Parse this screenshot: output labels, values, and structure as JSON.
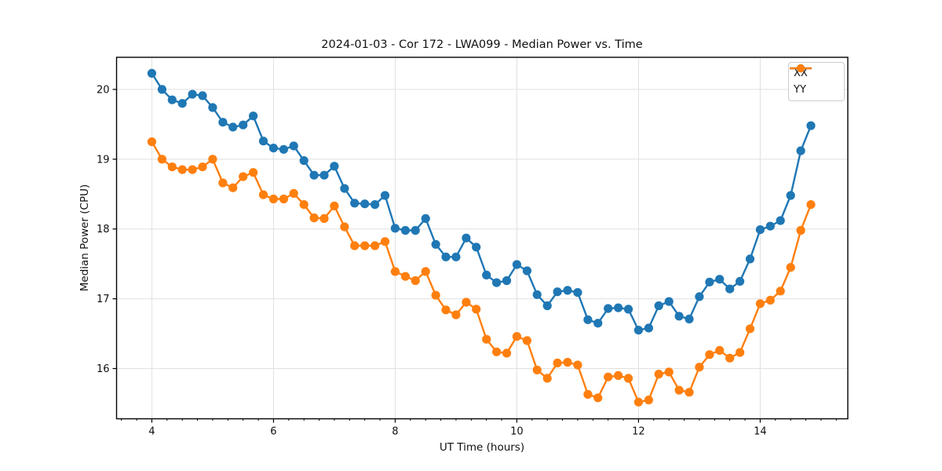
{
  "chart_data": {
    "type": "line",
    "title": "2024-01-03 - Cor 172 - LWA099 - Median Power vs. Time",
    "xlabel": "UT Time (hours)",
    "ylabel": "Median Power (CPU)",
    "xlim": [
      3.42,
      15.44
    ],
    "ylim": [
      15.28,
      20.46
    ],
    "x_major_ticks": [
      4,
      6,
      8,
      10,
      12,
      14
    ],
    "x_minor_tick_step": 0.25,
    "y_major_ticks": [
      16,
      17,
      18,
      19,
      20
    ],
    "grid": "major-both",
    "legend_position": "upper right",
    "colors": {
      "background": "#ffffff",
      "grid": "#e0e0e0",
      "spine": "#000000",
      "tick": "#000000",
      "text": "#111111"
    },
    "x": [
      4.0,
      4.167,
      4.333,
      4.5,
      4.667,
      4.833,
      5.0,
      5.167,
      5.333,
      5.5,
      5.667,
      5.833,
      6.0,
      6.167,
      6.333,
      6.5,
      6.667,
      6.833,
      7.0,
      7.167,
      7.333,
      7.5,
      7.667,
      7.833,
      8.0,
      8.167,
      8.333,
      8.5,
      8.667,
      8.833,
      9.0,
      9.167,
      9.333,
      9.5,
      9.667,
      9.833,
      10.0,
      10.167,
      10.333,
      10.5,
      10.667,
      10.833,
      11.0,
      11.167,
      11.333,
      11.5,
      11.667,
      11.833,
      12.0,
      12.167,
      12.333,
      12.5,
      12.667,
      12.833,
      13.0,
      13.167,
      13.333,
      13.5,
      13.667,
      13.833,
      14.0,
      14.167,
      14.333,
      14.5,
      14.667,
      14.833
    ],
    "series": [
      {
        "name": "XX",
        "color": "#1f77b4",
        "values": [
          20.23,
          20.0,
          19.85,
          19.8,
          19.93,
          19.91,
          19.74,
          19.53,
          19.46,
          19.49,
          19.62,
          19.26,
          19.16,
          19.14,
          19.19,
          18.98,
          18.77,
          18.77,
          18.9,
          18.58,
          18.37,
          18.36,
          18.35,
          18.48,
          18.01,
          17.98,
          17.98,
          18.15,
          17.78,
          17.6,
          17.6,
          17.87,
          17.74,
          17.34,
          17.23,
          17.26,
          17.49,
          17.4,
          17.06,
          16.9,
          17.1,
          17.12,
          17.09,
          16.7,
          16.65,
          16.86,
          16.87,
          16.85,
          16.55,
          16.58,
          16.9,
          16.96,
          16.75,
          16.71,
          17.03,
          17.24,
          17.28,
          17.14,
          17.25,
          17.57,
          17.99,
          18.04,
          18.12,
          18.48,
          19.12,
          19.48
        ]
      },
      {
        "name": "YY",
        "color": "#ff7f0e",
        "values": [
          19.25,
          19.0,
          18.89,
          18.85,
          18.85,
          18.89,
          19.0,
          18.66,
          18.59,
          18.75,
          18.81,
          18.49,
          18.43,
          18.43,
          18.51,
          18.35,
          18.16,
          18.15,
          18.33,
          18.03,
          17.76,
          17.76,
          17.76,
          17.82,
          17.39,
          17.32,
          17.26,
          17.39,
          17.05,
          16.84,
          16.77,
          16.95,
          16.85,
          16.42,
          16.24,
          16.22,
          16.46,
          16.4,
          15.98,
          15.86,
          16.08,
          16.09,
          16.05,
          15.63,
          15.58,
          15.88,
          15.9,
          15.86,
          15.52,
          15.55,
          15.92,
          15.95,
          15.69,
          15.66,
          16.02,
          16.2,
          16.26,
          16.15,
          16.23,
          16.57,
          16.93,
          16.98,
          17.11,
          17.45,
          17.98,
          18.35
        ]
      }
    ]
  }
}
